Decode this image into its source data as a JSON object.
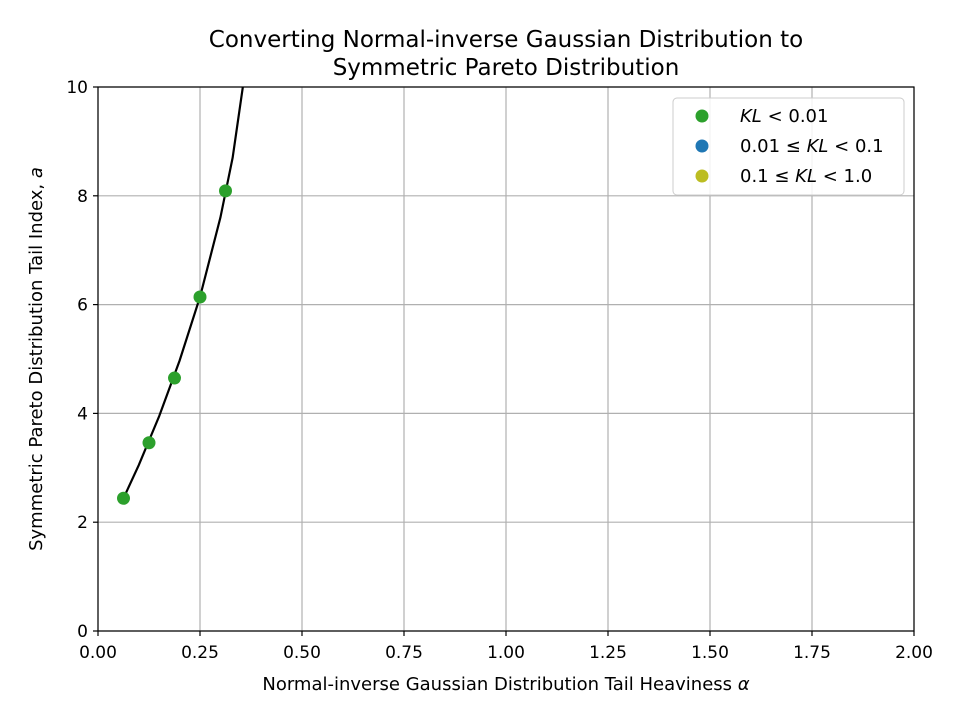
{
  "chart_data": {
    "type": "scatter",
    "title_lines": [
      "Converting Normal-inverse Gaussian Distribution to",
      "Symmetric Pareto Distribution"
    ],
    "xlabel": "Normal-inverse Gaussian Distribution Tail Heaviness α",
    "ylabel": "Symmetric Pareto Distribution Tail Index, a",
    "xlim": [
      0,
      2
    ],
    "ylim": [
      0,
      10
    ],
    "xticks": [
      0,
      0.25,
      0.5,
      0.75,
      1.0,
      1.25,
      1.5,
      1.75,
      2.0
    ],
    "xtick_labels": [
      "0.00",
      "0.25",
      "0.50",
      "0.75",
      "1.00",
      "1.25",
      "1.50",
      "1.75",
      "2.00"
    ],
    "yticks": [
      0,
      2,
      4,
      6,
      8,
      10
    ],
    "ytick_labels": [
      "0",
      "2",
      "4",
      "6",
      "8",
      "10"
    ],
    "grid": true,
    "legend_position": "top-right",
    "series": [
      {
        "name": "KL < 0.01",
        "legend_parts": [
          [
            "KL",
            true
          ],
          [
            " < 0.01",
            false
          ]
        ],
        "color": "#2ca02c",
        "points": [
          {
            "x": 0.0625,
            "y": 2.44
          },
          {
            "x": 0.125,
            "y": 3.46
          },
          {
            "x": 0.1875,
            "y": 4.65
          },
          {
            "x": 0.25,
            "y": 6.14
          },
          {
            "x": 0.3125,
            "y": 8.09
          }
        ]
      },
      {
        "name": "0.01 ≤ KL < 0.1",
        "legend_parts": [
          [
            "0.01 ≤ ",
            false
          ],
          [
            "KL",
            true
          ],
          [
            " < 0.1",
            false
          ]
        ],
        "color": "#1f77b4",
        "points": []
      },
      {
        "name": "0.1 ≤ KL < 1.0",
        "legend_parts": [
          [
            "0.1 ≤ ",
            false
          ],
          [
            "KL",
            true
          ],
          [
            " < 1.0",
            false
          ]
        ],
        "color": "#bcbd22",
        "points": []
      }
    ],
    "fit_line": {
      "color": "#000000",
      "x": [
        0.0625,
        0.1,
        0.15,
        0.2,
        0.25,
        0.3,
        0.33,
        0.355
      ],
      "y": [
        2.44,
        3.05,
        3.95,
        4.97,
        6.14,
        7.6,
        8.7,
        10.0
      ]
    }
  }
}
